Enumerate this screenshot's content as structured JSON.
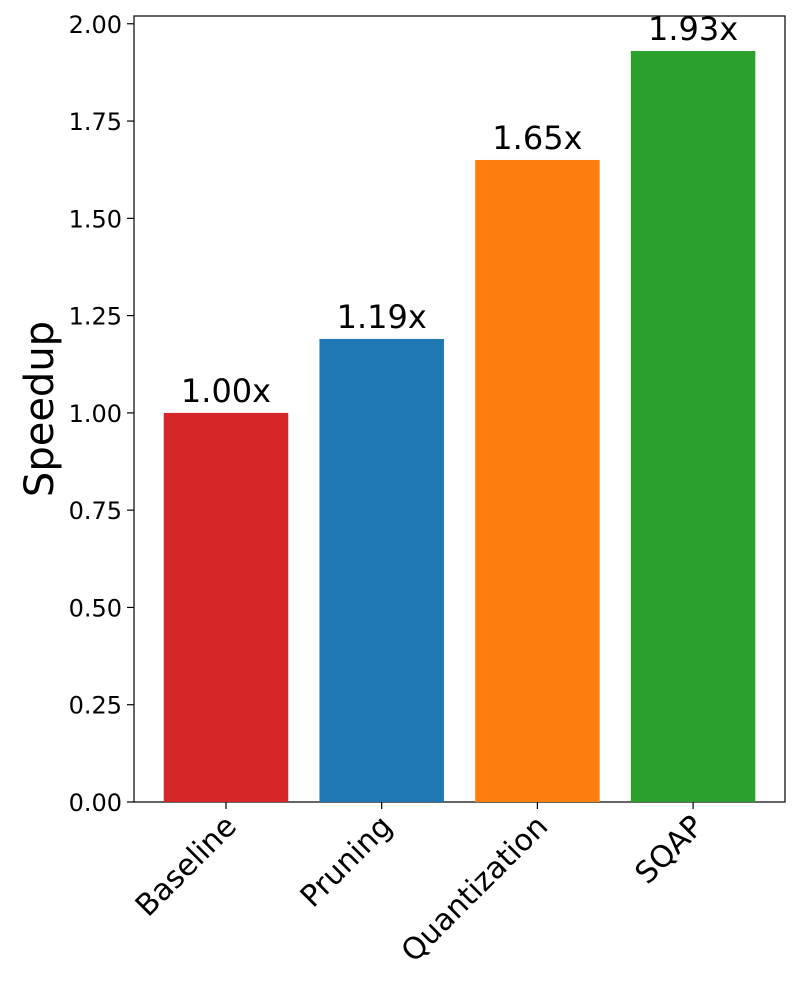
{
  "chart_data": {
    "type": "bar",
    "title": "",
    "xlabel": "",
    "ylabel": "Speedup",
    "categories": [
      "Baseline",
      "Pruning",
      "Quantization",
      "SQAP"
    ],
    "values": [
      1.0,
      1.19,
      1.65,
      1.93
    ],
    "value_labels": [
      "1.00x",
      "1.19x",
      "1.65x",
      "1.93x"
    ],
    "bar_colors": [
      "#d62728",
      "#1f77b4",
      "#ff7f0e",
      "#2ca02c"
    ],
    "ylim": [
      0,
      2.02
    ],
    "yticks": [
      0.0,
      0.25,
      0.5,
      0.75,
      1.0,
      1.25,
      1.5,
      1.75,
      2.0
    ],
    "ytick_labels": [
      "0.00",
      "0.25",
      "0.50",
      "0.75",
      "1.00",
      "1.25",
      "1.50",
      "1.75",
      "2.00"
    ],
    "grid": false,
    "legend": "none"
  }
}
